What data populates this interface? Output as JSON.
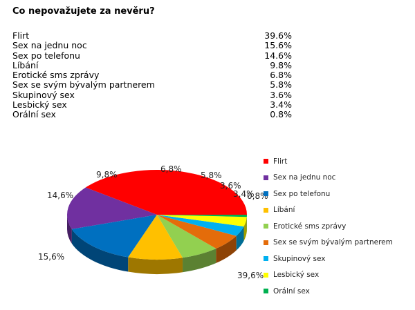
{
  "title": "Co nepovažujete  za nevěru?",
  "table": [
    {
      "label": "Flirt",
      "value": "39.6%"
    },
    {
      "label": "Sex na jednu noc",
      "value": "15.6%"
    },
    {
      "label": "Sex po telefonu",
      "value": "14.6%"
    },
    {
      "label": "Líbání",
      "value": "9.8%"
    },
    {
      "label": "Erotické sms zprávy",
      "value": "6.8%"
    },
    {
      "label": "Sex se svým bývalým partnerem",
      "value": "5.8%"
    },
    {
      "label": "Skupinový sex",
      "value": "3.6%"
    },
    {
      "label": "Lesbický sex",
      "value": "3.4%"
    },
    {
      "label": "Orální sex",
      "value": "0.8%"
    }
  ],
  "chart_data": {
    "type": "pie",
    "title": "Co nepovažujete  za nevěru?",
    "categories": [
      "Flirt",
      "Sex na jednu noc",
      "Sex po telefonu",
      "Líbání",
      "Erotické sms zprávy",
      "Sex se svým bývalým partnerem",
      "Skupinový sex",
      "Lesbický sex",
      "Orální sex"
    ],
    "values": [
      39.6,
      15.6,
      14.6,
      9.8,
      6.8,
      5.8,
      3.6,
      3.4,
      0.8
    ],
    "data_labels": [
      "39,6%",
      "15,6%",
      "14,6%",
      "9,8%",
      "6,8%",
      "5,8%",
      "3,6%",
      "3,4%",
      "0,8%"
    ],
    "colors": [
      "#FF0000",
      "#7030A0",
      "#0070C0",
      "#FFC000",
      "#92D050",
      "#E46C0A",
      "#00B0F0",
      "#FFFF00",
      "#00B050"
    ],
    "style": "3d",
    "legend": "right"
  }
}
